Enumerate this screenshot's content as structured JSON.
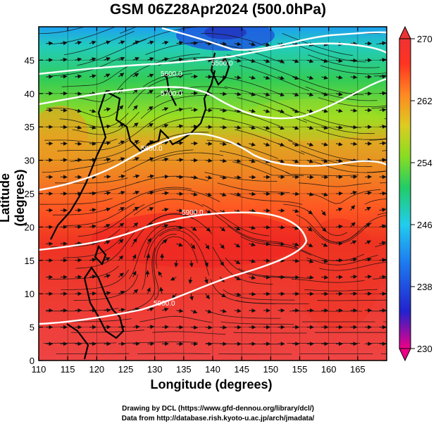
{
  "title": "GSM 06Z28Apr2024 (500.0hPa)",
  "x_axis": {
    "label": "Longitude (degrees)",
    "min": 110,
    "max": 170,
    "ticks": [
      "110",
      "115",
      "120",
      "125",
      "130",
      "135",
      "140",
      "145",
      "150",
      "155",
      "160",
      "165"
    ],
    "tick_values": [
      110,
      115,
      120,
      125,
      130,
      135,
      140,
      145,
      150,
      155,
      160,
      165
    ]
  },
  "y_axis": {
    "label": "Latitude  (degrees)",
    "min": 0,
    "max": 50,
    "ticks": [
      "0",
      "5",
      "10",
      "15",
      "20",
      "25",
      "30",
      "35",
      "40",
      "45"
    ],
    "tick_values": [
      0,
      5,
      10,
      15,
      20,
      25,
      30,
      35,
      40,
      45
    ]
  },
  "colorbar": {
    "min": 230,
    "max": 270,
    "labels": [
      "270",
      "262",
      "254",
      "246",
      "238",
      "230"
    ],
    "label_values": [
      270,
      262,
      254,
      246,
      238,
      230
    ],
    "colors": [
      "#ee0088",
      "#2222cc",
      "#1e7cf0",
      "#22ccee",
      "#22cc66",
      "#88dd22",
      "#ddcc22",
      "#ff8822",
      "#ff3322",
      "#ee3333"
    ]
  },
  "contours": [
    {
      "label": "5900.0"
    },
    {
      "label": "5800.0"
    },
    {
      "label": "5700.0"
    },
    {
      "label": "5600.0"
    },
    {
      "label": "5500.0"
    }
  ],
  "credits": {
    "line1": "Drawing by DCL (https://www.gfd-dennou.org/library/dcl/)",
    "line2": "Data from http://database.rish.kyoto-u.ac.jp/arch/jmadata/"
  }
}
